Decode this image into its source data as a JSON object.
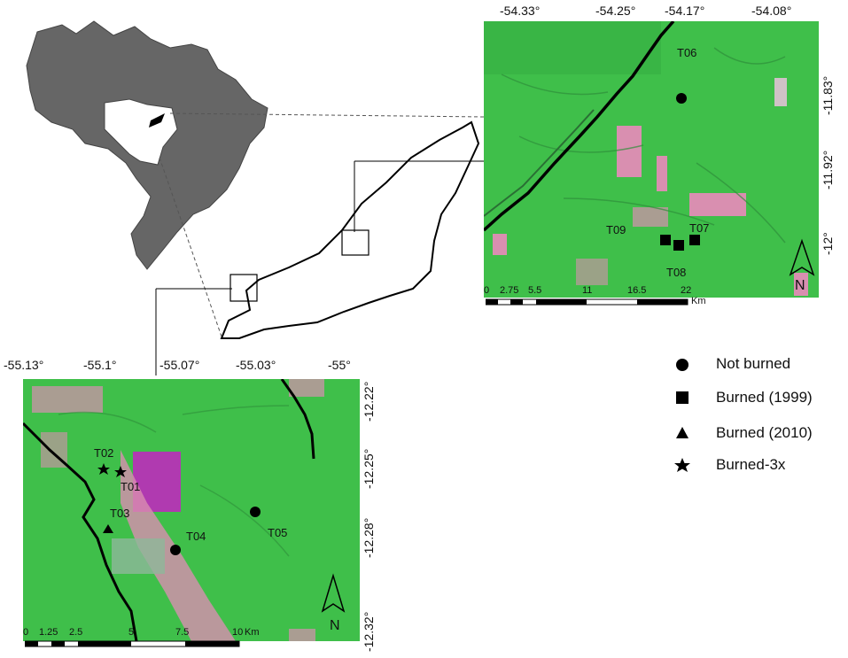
{
  "top_map": {
    "lon_ticks": [
      "-54.33°",
      "-54.25°",
      "-54.17°",
      "-54.08°"
    ],
    "lat_ticks": [
      "-11.83°",
      "-11.92°",
      "-12°"
    ],
    "sites": [
      {
        "label": "T06",
        "type": "not_burned"
      },
      {
        "label": "T07",
        "type": "burned_1999"
      },
      {
        "label": "T08",
        "type": "burned_1999"
      },
      {
        "label": "T09",
        "type": "burned_1999"
      }
    ],
    "scale_labels": [
      "0",
      "2.75",
      "5.5",
      "11",
      "16.5",
      "22"
    ],
    "scale_unit": "Km",
    "north": "N"
  },
  "bottom_map": {
    "lon_ticks": [
      "-55.13°",
      "-55.1°",
      "-55.07°",
      "-55.03°",
      "-55°"
    ],
    "lat_ticks": [
      "-12.22°",
      "-12.25°",
      "-12.28°",
      "-12.32°"
    ],
    "sites": [
      {
        "label": "T01",
        "type": "burned_3x"
      },
      {
        "label": "T02",
        "type": "burned_3x"
      },
      {
        "label": "T03",
        "type": "burned_2010"
      },
      {
        "label": "T04",
        "type": "not_burned"
      },
      {
        "label": "T05",
        "type": "not_burned"
      }
    ],
    "scale_labels": [
      "0",
      "1.25",
      "2.5",
      "5",
      "7.5",
      "10"
    ],
    "scale_unit": "Km",
    "north": "N"
  },
  "legend": [
    {
      "symbol": "circle",
      "label": "Not burned"
    },
    {
      "symbol": "square",
      "label": "Burned (1999)"
    },
    {
      "symbol": "triangle",
      "label": "Burned (2010)"
    },
    {
      "symbol": "star",
      "label": "Burned-3x"
    }
  ],
  "colors": {
    "vegetation": "#3fbf4a",
    "cleared": "#d98fb0",
    "burned_patch": "#b03ab0",
    "country_fill": "#666666"
  }
}
